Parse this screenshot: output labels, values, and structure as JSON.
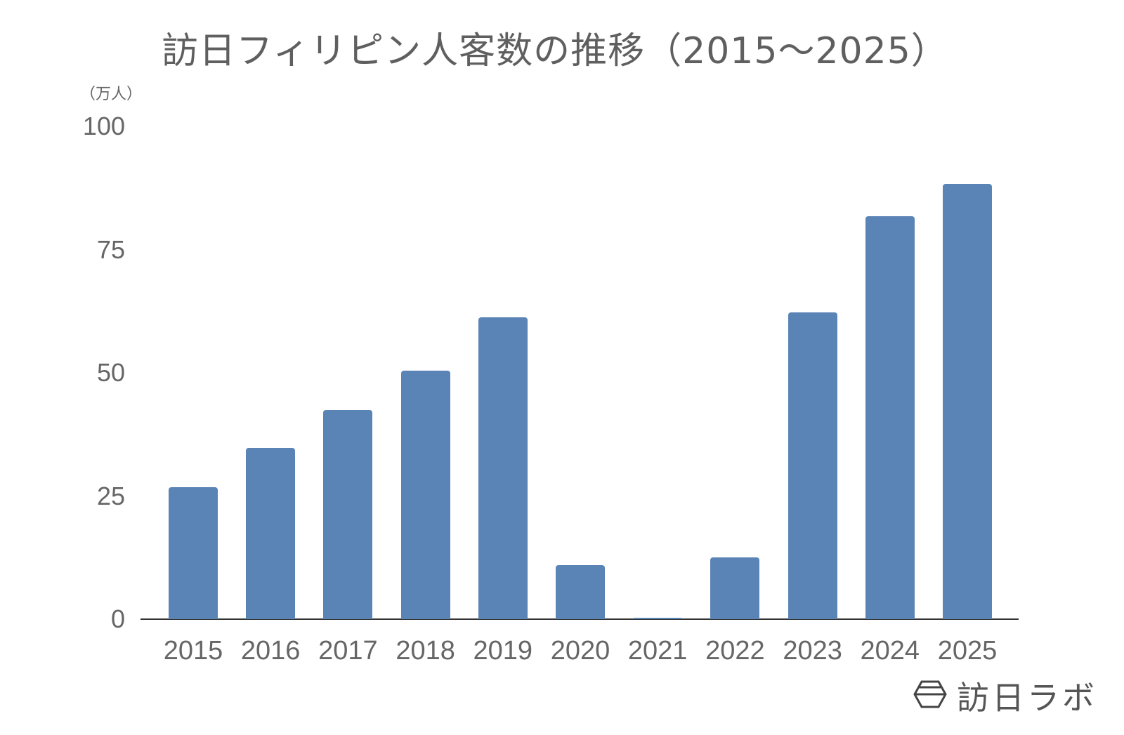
{
  "chart_data": {
    "type": "bar",
    "title": "訪日フィリピン人客数の推移（2015〜2025）",
    "xlabel": "",
    "ylabel": "（万人）",
    "unit": "（万人）",
    "categories": [
      "2015",
      "2016",
      "2017",
      "2018",
      "2019",
      "2020",
      "2021",
      "2022",
      "2023",
      "2024",
      "2025"
    ],
    "values": [
      26.8,
      34.8,
      42.4,
      50.4,
      61.3,
      10.9,
      0.3,
      12.6,
      62.2,
      81.8,
      88.3
    ],
    "ylim": [
      0,
      100
    ],
    "yticks": [
      "0",
      "25",
      "50",
      "75",
      "100"
    ],
    "grid": false,
    "legend": null,
    "bar_color": "#5b84b6"
  },
  "branding": {
    "logo_text": "訪日ラボ",
    "logo_icon": "hexagon-logo-icon"
  }
}
